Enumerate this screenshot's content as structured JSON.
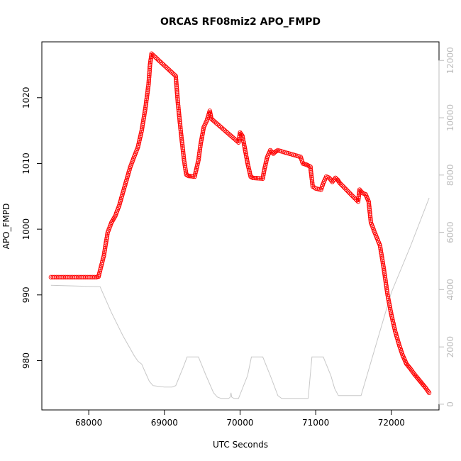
{
  "chart_data": {
    "type": "scatter",
    "title": "ORCAS RF08miz2 APO_FMPD",
    "xlabel": "UTC Seconds",
    "ylabel": "APO_FMPD",
    "xlim": [
      67380,
      72630
    ],
    "ylim": [
      972.5,
      1028.5
    ],
    "y2lim": [
      -200,
      12650
    ],
    "x_ticks": [
      "68000",
      "69000",
      "70000",
      "71000",
      "72000"
    ],
    "y_ticks": [
      "980",
      "990",
      "1000",
      "1010",
      "1020"
    ],
    "y2_ticks": [
      "0",
      "2000",
      "4000",
      "6000",
      "8000",
      "10000",
      "12000"
    ],
    "grid": false,
    "legend": "none",
    "colors": {
      "primary": "#ff0000",
      "secondary": "#c8c8c8"
    },
    "series": [
      {
        "kind": "points",
        "axis": "left",
        "x": [
          67500,
          68100,
          68130,
          68200,
          68250,
          68300,
          68350,
          68400,
          68450,
          68500,
          68550,
          68600,
          68650,
          68700,
          68750,
          68790,
          68810,
          68830,
          69150,
          69180,
          69220,
          69260,
          69290,
          69320,
          69400,
          69450,
          69480,
          69520,
          69560,
          69600,
          69620,
          69650,
          69980,
          70000,
          70030,
          70060,
          70100,
          70140,
          70170,
          70300,
          70320,
          70360,
          70400,
          70440,
          70470,
          70500,
          70800,
          70830,
          70880,
          70930,
          70960,
          71000,
          71070,
          71100,
          71140,
          71180,
          71220,
          71260,
          71290,
          71320,
          71560,
          71580,
          71620,
          71660,
          71700,
          71730,
          71780,
          71850,
          71900,
          71950,
          72000,
          72050,
          72100,
          72150,
          72200,
          72250,
          72300,
          72350,
          72400,
          72450,
          72500
        ],
        "y": [
          992.7,
          992.7,
          992.8,
          996,
          999.5,
          1001,
          1002,
          1003.5,
          1005.5,
          1007.5,
          1009.5,
          1011,
          1012.5,
          1015,
          1018.5,
          1022,
          1025,
          1026.7,
          1023.3,
          1019,
          1014.5,
          1010.5,
          1008.3,
          1008.1,
          1008.0,
          1010.5,
          1013,
          1015.5,
          1016.5,
          1018,
          1016.8,
          1016.5,
          1013.2,
          1014.7,
          1014.2,
          1012.5,
          1010,
          1008,
          1007.8,
          1007.7,
          1009,
          1011,
          1012,
          1011.5,
          1011.8,
          1012,
          1011,
          1010,
          1009.8,
          1009.5,
          1006.5,
          1006.2,
          1006,
          1007,
          1008,
          1007.8,
          1007.2,
          1007.8,
          1007.5,
          1007,
          1004.2,
          1006,
          1005.5,
          1005.3,
          1004.2,
          1001,
          999.5,
          997.5,
          994,
          990,
          987,
          984.5,
          982.5,
          980.8,
          979.5,
          978.8,
          978,
          977.3,
          976.6,
          975.9,
          975.1
        ]
      },
      {
        "kind": "line",
        "axis": "right",
        "x": [
          67500,
          68150,
          68300,
          68450,
          68600,
          68650,
          68700,
          68750,
          68800,
          68850,
          69000,
          69100,
          69150,
          69250,
          69300,
          69450,
          69550,
          69650,
          69700,
          69750,
          69850,
          69870,
          69880,
          69890,
          69920,
          69980,
          70100,
          70150,
          70300,
          70400,
          70500,
          70550,
          70650,
          70900,
          70950,
          71100,
          71200,
          71250,
          71300,
          71400,
          71550,
          71600,
          72000,
          72250,
          72500
        ],
        "y": [
          4150,
          4100,
          3200,
          2400,
          1700,
          1500,
          1400,
          1100,
          800,
          650,
          600,
          600,
          650,
          1300,
          1650,
          1650,
          1000,
          400,
          250,
          200,
          200,
          250,
          400,
          250,
          200,
          200,
          1000,
          1650,
          1650,
          1000,
          300,
          200,
          200,
          200,
          1650,
          1650,
          1000,
          550,
          300,
          300,
          300,
          300,
          3900,
          5500,
          7200
        ]
      }
    ]
  }
}
